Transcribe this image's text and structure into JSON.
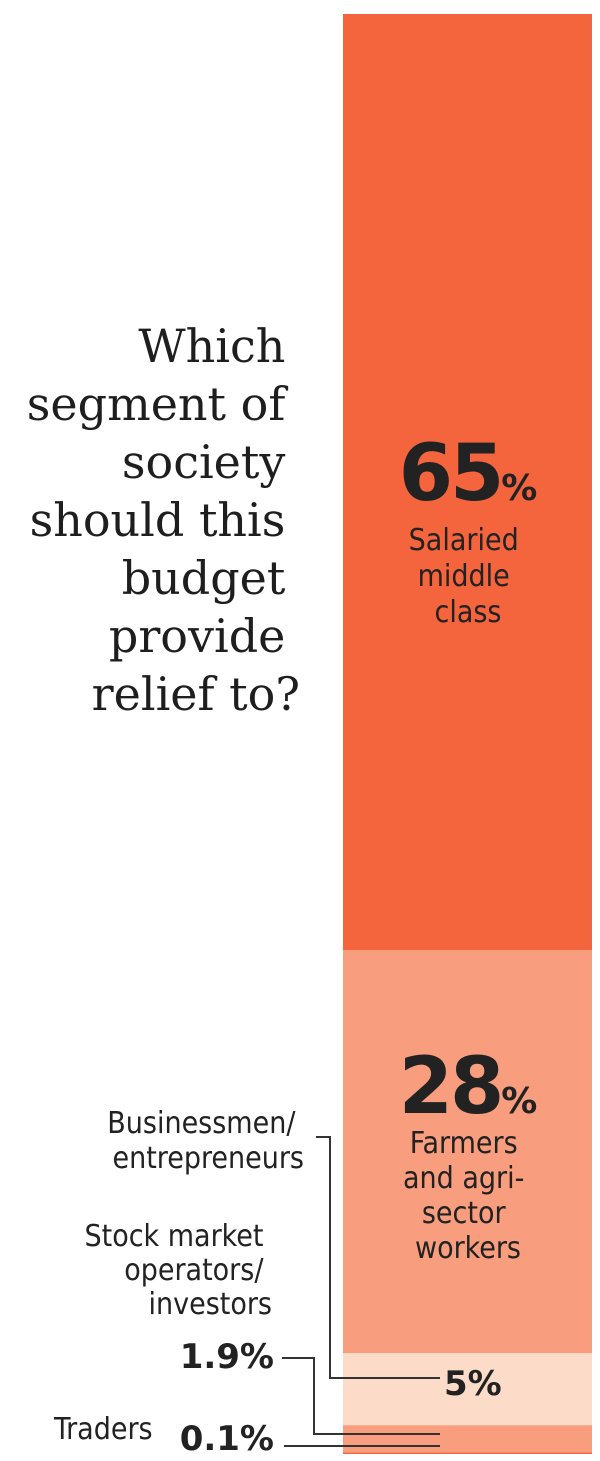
{
  "question": "Which segment of society should this budget provide relief to?",
  "question_lines": [
    "Which",
    "segment of",
    "society",
    "should this",
    "budget",
    "provide",
    "relief to?"
  ],
  "chart_data": {
    "type": "bar",
    "stacked": true,
    "orientation": "vertical",
    "title": "Which segment of society should this budget provide relief to?",
    "unit": "%",
    "segments": [
      {
        "name": "Salaried middle class",
        "label_lines": [
          "Salaried",
          "middle",
          "class"
        ],
        "value": 65,
        "value_label": "65",
        "color": "#f4653e"
      },
      {
        "name": "Farmers and agri-sector workers",
        "label_lines": [
          "Farmers",
          "and agri-",
          "sector",
          "workers"
        ],
        "value": 28,
        "value_label": "28",
        "color": "#f89d7d"
      },
      {
        "name": "Businessmen/ entrepreneurs",
        "label_lines": [
          "Businessmen/",
          "entrepreneurs"
        ],
        "value": 5,
        "value_label": "5%",
        "color": "#fcdcc9"
      },
      {
        "name": "Stock market operators/ investors",
        "label_lines": [
          "Stock market",
          "operators/",
          "investors"
        ],
        "value": 1.9,
        "value_label": "1.9%",
        "color": "#f89d7d"
      },
      {
        "name": "Traders",
        "label_lines": [
          "Traders"
        ],
        "value": 0.1,
        "value_label": "0.1%",
        "color": "#f4653e"
      }
    ]
  }
}
